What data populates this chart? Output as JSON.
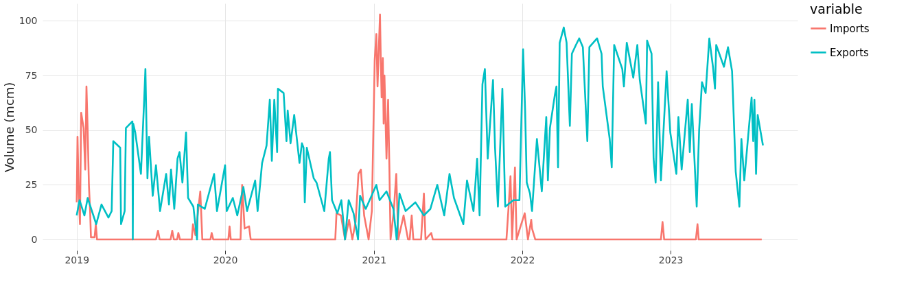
{
  "chart_data": {
    "type": "line",
    "ylabel": "Volume (mcm)",
    "legend_title": "variable",
    "legend": "top right",
    "grid": true,
    "line_style": "solid",
    "marker": "none",
    "xlim": [
      "2018-10-09",
      "2023-11-09"
    ],
    "xticks": [
      "2019",
      "2020",
      "2021",
      "2022",
      "2023"
    ],
    "ylim": [
      -5,
      108
    ],
    "yticks": [
      0,
      25,
      50,
      75,
      100
    ],
    "series": [
      {
        "name": "Imports",
        "color": "#f8766d",
        "x": [
          "2019-01-01",
          "2019-01-03",
          "2019-01-06",
          "2019-01-09",
          "2019-01-12",
          "2019-01-18",
          "2019-01-22",
          "2019-01-25",
          "2019-01-28",
          "2019-01-31",
          "2019-02-03",
          "2019-02-05",
          "2019-02-08",
          "2019-02-14",
          "2019-02-17",
          "2019-02-20",
          "2019-07-15",
          "2019-07-20",
          "2019-07-24",
          "2019-08-20",
          "2019-08-24",
          "2019-08-28",
          "2019-09-05",
          "2019-09-08",
          "2019-09-12",
          "2019-10-11",
          "2019-10-14",
          "2019-10-20",
          "2019-11-01",
          "2019-11-06",
          "2019-11-26",
          "2019-11-29",
          "2019-12-03",
          "2020-01-09",
          "2020-01-12",
          "2020-01-15",
          "2020-02-08",
          "2020-02-12",
          "2020-02-18",
          "2020-02-29",
          "2020-03-04",
          "2020-09-28",
          "2020-10-01",
          "2020-10-12",
          "2020-10-22",
          "2020-11-01",
          "2020-11-09",
          "2020-11-17",
          "2020-11-24",
          "2020-11-30",
          "2020-12-08",
          "2020-12-19",
          "2020-12-27",
          "2021-01-03",
          "2021-01-07",
          "2021-01-10",
          "2021-01-16",
          "2021-01-18",
          "2021-01-20",
          "2021-01-23",
          "2021-01-25",
          "2021-01-27",
          "2021-02-01",
          "2021-02-05",
          "2021-02-08",
          "2021-02-11",
          "2021-02-19",
          "2021-02-25",
          "2021-03-02",
          "2021-03-15",
          "2021-03-26",
          "2021-03-30",
          "2021-04-04",
          "2021-04-08",
          "2021-04-27",
          "2021-05-01",
          "2021-05-04",
          "2021-05-08",
          "2021-05-22",
          "2021-05-26",
          "2021-11-23",
          "2021-11-28",
          "2021-12-03",
          "2021-12-07",
          "2021-12-14",
          "2021-12-18",
          "2021-12-26",
          "2022-01-07",
          "2022-01-15",
          "2022-01-23",
          "2022-01-25",
          "2022-02-02",
          "2022-12-08",
          "2022-12-12",
          "2022-12-16",
          "2023-03-04",
          "2023-03-08",
          "2023-03-11",
          "2023-08-13"
        ],
        "values": [
          17,
          47,
          21,
          7,
          58,
          51,
          32,
          70,
          50,
          25,
          13,
          1,
          1,
          1,
          7,
          0,
          0,
          4,
          0,
          0,
          4,
          0,
          0,
          3,
          0,
          0,
          7,
          2,
          22,
          0,
          0,
          3,
          0,
          0,
          6,
          0,
          0,
          25,
          5,
          6,
          0,
          0,
          12,
          11,
          0,
          9,
          0,
          8,
          30,
          32,
          11,
          0,
          13,
          82,
          94,
          70,
          103,
          82,
          65,
          83,
          53,
          75,
          37,
          64,
          34,
          0,
          13,
          30,
          0,
          11,
          0,
          0,
          11,
          0,
          0,
          12,
          21,
          0,
          3,
          0,
          0,
          14,
          29,
          0,
          33,
          0,
          5,
          12,
          0,
          9,
          5,
          0,
          0,
          8,
          0,
          0,
          7,
          0,
          0
        ]
      },
      {
        "name": "Exports",
        "color": "#00bfc4",
        "x": [
          "2019-01-01",
          "2019-01-08",
          "2019-01-20",
          "2019-01-28",
          "2019-02-18",
          "2019-03-03",
          "2019-03-20",
          "2019-03-28",
          "2019-04-01",
          "2019-04-18",
          "2019-04-20",
          "2019-04-29",
          "2019-05-02",
          "2019-05-18",
          "2019-05-19",
          "2019-05-20",
          "2019-05-25",
          "2019-06-08",
          "2019-06-16",
          "2019-06-19",
          "2019-06-24",
          "2019-06-28",
          "2019-07-07",
          "2019-07-15",
          "2019-07-25",
          "2019-08-09",
          "2019-08-16",
          "2019-08-21",
          "2019-08-29",
          "2019-09-06",
          "2019-09-11",
          "2019-09-18",
          "2019-09-27",
          "2019-10-02",
          "2019-10-15",
          "2019-10-24",
          "2019-10-26",
          "2019-11-12",
          "2019-12-05",
          "2019-12-12",
          "2020-01-01",
          "2020-01-05",
          "2020-01-20",
          "2020-01-31",
          "2020-02-15",
          "2020-02-24",
          "2020-03-15",
          "2020-03-21",
          "2020-04-01",
          "2020-04-12",
          "2020-04-20",
          "2020-04-25",
          "2020-05-01",
          "2020-05-08",
          "2020-05-10",
          "2020-05-24",
          "2020-05-31",
          "2020-06-03",
          "2020-06-10",
          "2020-06-19",
          "2020-07-02",
          "2020-07-08",
          "2020-07-12",
          "2020-07-15",
          "2020-07-20",
          "2020-08-06",
          "2020-08-13",
          "2020-09-01",
          "2020-09-12",
          "2020-09-15",
          "2020-09-20",
          "2020-10-03",
          "2020-10-13",
          "2020-10-22",
          "2020-10-31",
          "2020-11-12",
          "2020-11-23",
          "2020-11-28",
          "2020-12-12",
          "2021-01-07",
          "2021-01-15",
          "2021-02-01",
          "2021-02-18",
          "2021-02-26",
          "2021-03-05",
          "2021-03-20",
          "2021-04-13",
          "2021-05-04",
          "2021-05-20",
          "2021-06-06",
          "2021-06-23",
          "2021-07-06",
          "2021-07-17",
          "2021-08-09",
          "2021-08-18",
          "2021-09-03",
          "2021-09-12",
          "2021-09-18",
          "2021-09-25",
          "2021-10-01",
          "2021-10-08",
          "2021-10-21",
          "2021-10-26",
          "2021-11-02",
          "2021-11-13",
          "2021-11-20",
          "2021-12-10",
          "2021-12-25",
          "2022-01-03",
          "2022-01-08",
          "2022-01-12",
          "2022-01-20",
          "2022-01-25",
          "2022-02-06",
          "2022-02-18",
          "2022-03-01",
          "2022-03-05",
          "2022-03-10",
          "2022-03-22",
          "2022-03-26",
          "2022-03-30",
          "2022-04-03",
          "2022-04-13",
          "2022-04-20",
          "2022-04-28",
          "2022-05-03",
          "2022-05-13",
          "2022-05-21",
          "2022-05-30",
          "2022-06-10",
          "2022-06-15",
          "2022-07-04",
          "2022-07-15",
          "2022-07-18",
          "2022-08-04",
          "2022-08-09",
          "2022-08-15",
          "2022-09-04",
          "2022-09-08",
          "2022-09-15",
          "2022-10-01",
          "2022-10-11",
          "2022-10-17",
          "2022-11-01",
          "2022-11-04",
          "2022-11-15",
          "2022-11-20",
          "2022-11-25",
          "2022-12-01",
          "2022-12-08",
          "2022-12-22",
          "2022-12-31",
          "2023-01-15",
          "2023-01-20",
          "2023-01-28",
          "2023-02-12",
          "2023-02-17",
          "2023-02-22",
          "2023-03-06",
          "2023-03-12",
          "2023-03-19",
          "2023-03-28",
          "2023-04-06",
          "2023-04-15",
          "2023-04-20",
          "2023-04-23",
          "2023-05-12",
          "2023-05-22",
          "2023-06-01",
          "2023-06-10",
          "2023-06-19",
          "2023-06-24",
          "2023-07-01",
          "2023-07-19",
          "2023-07-23",
          "2023-07-26",
          "2023-07-30",
          "2023-08-03",
          "2023-08-16"
        ],
        "values": [
          11,
          18,
          11,
          19,
          7,
          16,
          10,
          13,
          45,
          42,
          7,
          13,
          51,
          54,
          0,
          53,
          49,
          30,
          64,
          78,
          28,
          47,
          20,
          34,
          13,
          30,
          16,
          32,
          14,
          37,
          40,
          26,
          49,
          19,
          15,
          0,
          16,
          14,
          30,
          13,
          34,
          13,
          19,
          11,
          24,
          13,
          27,
          13,
          35,
          43,
          64,
          36,
          64,
          40,
          69,
          67,
          45,
          59,
          44,
          57,
          35,
          44,
          42,
          17,
          42,
          28,
          26,
          13,
          37,
          40,
          18,
          12,
          18,
          0,
          18,
          12,
          0,
          20,
          14,
          25,
          18,
          22,
          14,
          0,
          21,
          13,
          17,
          11,
          14,
          25,
          11,
          30,
          19,
          7,
          27,
          13,
          37,
          11,
          71,
          78,
          37,
          73,
          42,
          15,
          69,
          15,
          18,
          18,
          87,
          59,
          26,
          21,
          13,
          46,
          22,
          56,
          27,
          51,
          66,
          70,
          33,
          90,
          97,
          90,
          52,
          85,
          89,
          92,
          88,
          45,
          88,
          92,
          85,
          70,
          46,
          33,
          89,
          78,
          70,
          90,
          74,
          89,
          73,
          53,
          91,
          85,
          37,
          26,
          72,
          27,
          77,
          49,
          30,
          56,
          32,
          64,
          40,
          62,
          15,
          50,
          72,
          67,
          92,
          79,
          69,
          89,
          79,
          88,
          77,
          31,
          15,
          46,
          27,
          65,
          45,
          64,
          30,
          57,
          43
        ]
      }
    ]
  }
}
